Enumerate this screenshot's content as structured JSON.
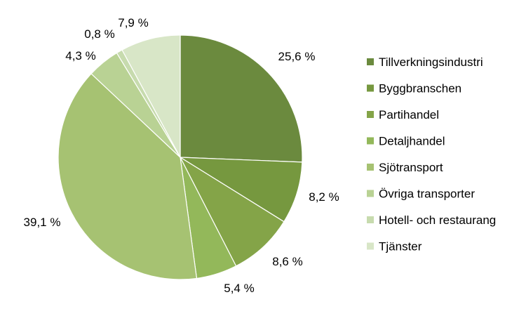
{
  "chart_data": {
    "type": "pie",
    "title": "",
    "categories": [
      "Tillverkningsindustri",
      "Byggbranschen",
      "Partihandel",
      "Detaljhandel",
      "Sjötransport",
      "Övriga transporter",
      "Hotell- och restaurang",
      "Tjänster"
    ],
    "values": [
      25.6,
      8.2,
      8.6,
      5.4,
      39.1,
      4.3,
      0.8,
      7.9
    ],
    "labels": [
      "25,6 %",
      "8,2 %",
      "8,6 %",
      "5,4 %",
      "39,1 %",
      "4,3 %",
      "0,8 %",
      "7,9 %"
    ],
    "colors": [
      "#6b8a3e",
      "#76983f",
      "#84a448",
      "#93b85a",
      "#a6c272",
      "#b9d294",
      "#c7dbae",
      "#d8e6c7"
    ],
    "start_angle_deg": 0,
    "direction": "clockwise",
    "legend_position": "right"
  }
}
